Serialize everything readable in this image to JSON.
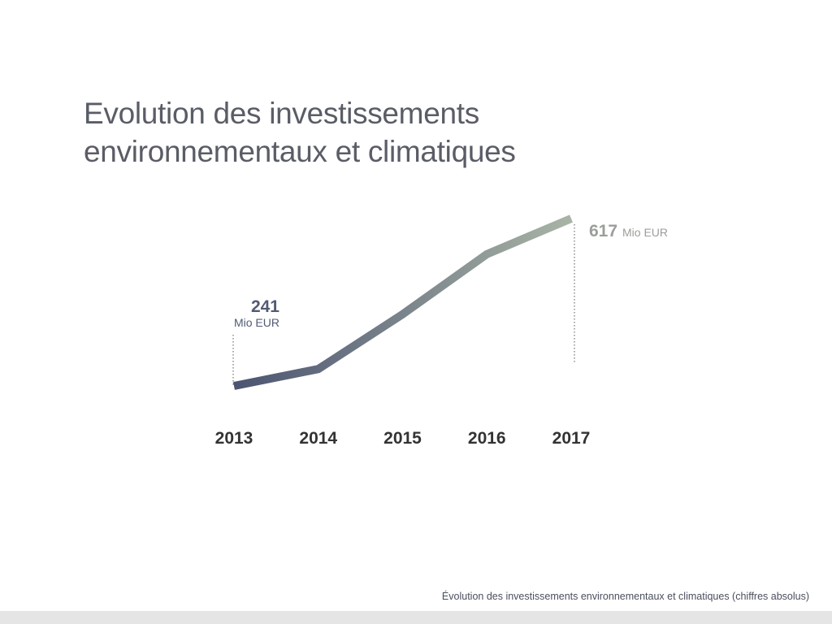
{
  "title_lines": [
    "Evolution des investissements",
    "environnementaux et climatiques"
  ],
  "caption": "Évolution des investissements environnementaux et climatiques (chiffres absolus)",
  "chart_data": {
    "type": "line",
    "categories": [
      "2013",
      "2014",
      "2015",
      "2016",
      "2017"
    ],
    "values": [
      241,
      279,
      402,
      537,
      617
    ],
    "unit": "Mio EUR",
    "annotations": [
      {
        "category": "2013",
        "value": "241",
        "unit": "Mio EUR",
        "color": "#525b73"
      },
      {
        "category": "2017",
        "value": "617",
        "unit": "Mio EUR",
        "color": "#9a9f99"
      }
    ],
    "gradient_colors": [
      "#4b5470",
      "#a9b4a6"
    ],
    "grid": false
  }
}
